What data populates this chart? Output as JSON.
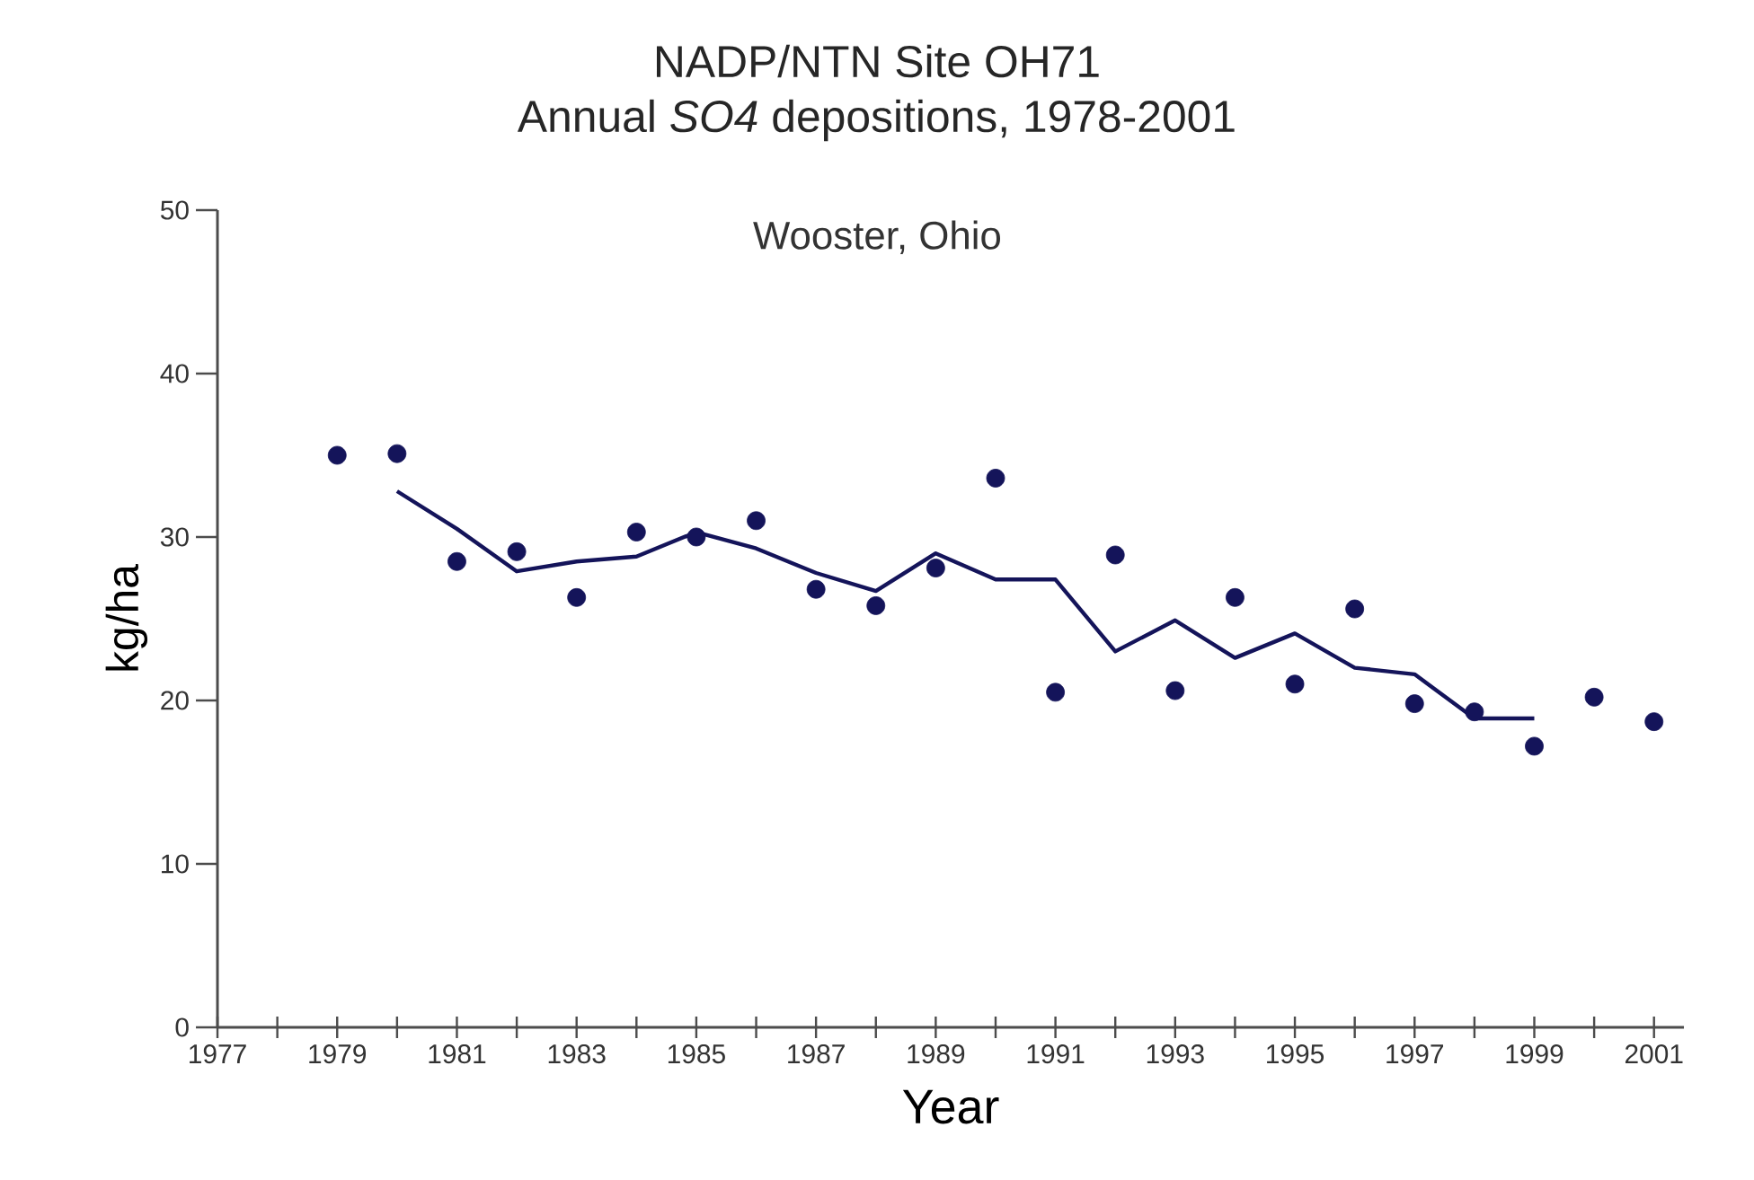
{
  "chart_data": {
    "type": "scatter",
    "title": "NADP/NTN Site OH71",
    "subtitle": "Annual *SO4* depositions, 1978-2001",
    "xlabel": "Year",
    "ylabel": "kg/ha",
    "annotations": [
      "Wooster, Ohio"
    ],
    "series": [
      {
        "marker": "circle",
        "color": "#14145a",
        "x": [
          1979,
          1980,
          1981,
          1982,
          1983,
          1984,
          1985,
          1986,
          1987,
          1988,
          1989,
          1990,
          1991,
          1992,
          1993,
          1994,
          1995,
          1996,
          1997,
          1998,
          1999,
          2000,
          2001
        ],
        "values": [
          35.0,
          35.1,
          28.5,
          29.1,
          26.3,
          30.3,
          30.0,
          31.0,
          26.8,
          25.8,
          28.1,
          33.6,
          20.5,
          28.9,
          20.6,
          26.3,
          21.0,
          25.6,
          19.8,
          19.3,
          17.2,
          20.2,
          18.7
        ]
      },
      {
        "type": "line",
        "marker": "none",
        "line_style": "solid",
        "color": "#14145a",
        "x": [
          1980,
          1981,
          1982,
          1983,
          1984,
          1985,
          1986,
          1987,
          1988,
          1989,
          1990,
          1991,
          1992,
          1993,
          1994,
          1995,
          1996,
          1997,
          1998,
          1999
        ],
        "values": [
          32.8,
          30.5,
          27.9,
          28.5,
          28.8,
          30.3,
          29.3,
          27.8,
          26.7,
          29.0,
          27.4,
          27.4,
          23.0,
          24.9,
          22.6,
          24.1,
          22.0,
          21.6,
          18.9,
          18.9
        ]
      }
    ],
    "xlim": [
      1977,
      2001.5
    ],
    "ylim": [
      0,
      50
    ],
    "xticks": [
      1977,
      {
        "value": 1978,
        "label": null
      },
      1979,
      {
        "value": 1980,
        "label": null
      },
      1981,
      {
        "value": 1982,
        "label": null
      },
      1983,
      {
        "value": 1984,
        "label": null
      },
      1985,
      {
        "value": 1986,
        "label": null
      },
      1987,
      {
        "value": 1988,
        "label": null
      },
      1989,
      {
        "value": 1990,
        "label": null
      },
      1991,
      {
        "value": 1992,
        "label": null
      },
      1993,
      {
        "value": 1994,
        "label": null
      },
      1995,
      {
        "value": 1996,
        "label": null
      },
      1997,
      {
        "value": 1998,
        "label": null
      },
      1999,
      {
        "value": 2000,
        "label": null
      },
      2001
    ],
    "yticks": [
      0,
      10,
      20,
      30,
      40,
      50
    ],
    "grid": false
  }
}
